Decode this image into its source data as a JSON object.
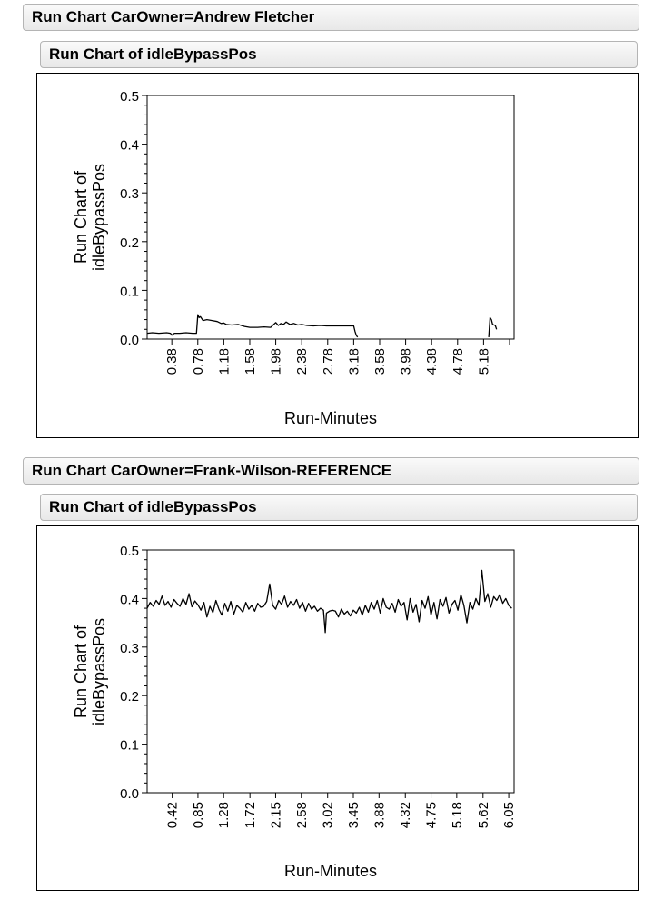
{
  "panels": [
    {
      "group_title": "Run Chart CarOwner=Andrew Fletcher",
      "chart_title": "Run Chart of idleBypassPos"
    },
    {
      "group_title": "Run Chart CarOwner=Frank-Wilson-REFERENCE",
      "chart_title": "Run Chart of idleBypassPos"
    }
  ],
  "chart_data": [
    {
      "type": "line",
      "title": "Run Chart of idleBypassPos",
      "xlabel": "Run-Minutes",
      "ylabel": "Run Chart of idleBypassPos",
      "ylabel_lines": [
        "Run Chart of",
        "idleBypassPos"
      ],
      "ylim": [
        0,
        0.5
      ],
      "yticks": [
        "0.0",
        "0.1",
        "0.2",
        "0.3",
        "0.4",
        "0.5"
      ],
      "xlim": [
        0,
        5.65
      ],
      "xticks": [
        "0.38",
        "0.78",
        "1.18",
        "1.58",
        "1.98",
        "2.38",
        "2.78",
        "3.18",
        "3.58",
        "3.98",
        "4.38",
        "4.78",
        "5.18"
      ],
      "xtick_values": [
        0.38,
        0.78,
        1.18,
        1.58,
        1.98,
        2.38,
        2.78,
        3.18,
        3.58,
        3.98,
        4.38,
        4.78,
        5.18
      ],
      "grid": false,
      "series": [
        {
          "x": [
            0.0,
            0.08,
            0.18,
            0.3,
            0.36,
            0.38,
            0.42,
            0.5,
            0.6,
            0.7,
            0.76,
            0.78,
            0.8,
            0.82,
            0.86,
            0.92,
            1.0,
            1.08,
            1.14,
            1.18,
            1.22,
            1.3,
            1.4,
            1.5,
            1.58,
            1.7,
            1.8,
            1.9,
            1.95,
            1.98,
            2.02,
            2.06,
            2.1,
            2.14,
            2.2,
            2.26,
            2.32,
            2.38,
            2.46,
            2.56,
            2.66,
            2.76,
            2.86,
            2.96,
            3.06,
            3.14,
            3.18,
            3.2,
            3.22,
            3.24,
            5.26,
            5.28,
            5.3,
            5.32,
            5.36,
            5.38
          ],
          "y": [
            0.012,
            0.013,
            0.012,
            0.013,
            0.012,
            0.008,
            0.012,
            0.012,
            0.013,
            0.012,
            0.012,
            0.05,
            0.044,
            0.046,
            0.038,
            0.04,
            0.038,
            0.036,
            0.032,
            0.033,
            0.03,
            0.029,
            0.03,
            0.026,
            0.024,
            0.024,
            0.025,
            0.024,
            0.03,
            0.034,
            0.028,
            0.032,
            0.03,
            0.035,
            0.03,
            0.032,
            0.029,
            0.03,
            0.028,
            0.027,
            0.028,
            0.027,
            0.027,
            0.027,
            0.027,
            0.027,
            0.027,
            0.016,
            0.008,
            0.004,
            0.004,
            0.044,
            0.04,
            0.03,
            0.028,
            0.02
          ]
        }
      ]
    },
    {
      "type": "line",
      "title": "Run Chart of idleBypassPos",
      "xlabel": "Run-Minutes",
      "ylabel": "Run Chart of idleBypassPos",
      "ylabel_lines": [
        "Run Chart of",
        "idleBypassPos"
      ],
      "ylim": [
        0,
        0.5
      ],
      "yticks": [
        "0.0",
        "0.1",
        "0.2",
        "0.3",
        "0.4",
        "0.5"
      ],
      "xlim": [
        0,
        6.14
      ],
      "xticks": [
        "0.42",
        "0.85",
        "1.28",
        "1.72",
        "2.15",
        "2.58",
        "3.02",
        "3.45",
        "3.88",
        "4.32",
        "4.75",
        "5.18",
        "5.62",
        "6.05"
      ],
      "xtick_values": [
        0.42,
        0.85,
        1.28,
        1.72,
        2.15,
        2.58,
        3.02,
        3.45,
        3.88,
        4.32,
        4.75,
        5.18,
        5.62,
        6.05
      ],
      "grid": false,
      "series": [
        {
          "x": [
            0.0,
            0.05,
            0.1,
            0.15,
            0.2,
            0.25,
            0.3,
            0.35,
            0.4,
            0.45,
            0.5,
            0.55,
            0.6,
            0.65,
            0.7,
            0.75,
            0.8,
            0.85,
            0.9,
            0.95,
            1.0,
            1.05,
            1.1,
            1.15,
            1.2,
            1.25,
            1.3,
            1.35,
            1.4,
            1.45,
            1.5,
            1.55,
            1.6,
            1.65,
            1.7,
            1.75,
            1.8,
            1.85,
            1.9,
            1.95,
            2.0,
            2.05,
            2.1,
            2.15,
            2.2,
            2.25,
            2.3,
            2.35,
            2.4,
            2.45,
            2.5,
            2.55,
            2.6,
            2.65,
            2.7,
            2.75,
            2.8,
            2.85,
            2.9,
            2.95,
            2.98,
            3.0,
            3.05,
            3.1,
            3.15,
            3.2,
            3.25,
            3.3,
            3.35,
            3.4,
            3.45,
            3.5,
            3.55,
            3.6,
            3.65,
            3.7,
            3.75,
            3.8,
            3.85,
            3.9,
            3.95,
            4.0,
            4.05,
            4.1,
            4.15,
            4.2,
            4.25,
            4.3,
            4.35,
            4.4,
            4.45,
            4.5,
            4.55,
            4.6,
            4.65,
            4.7,
            4.75,
            4.8,
            4.85,
            4.9,
            4.95,
            5.0,
            5.05,
            5.1,
            5.15,
            5.2,
            5.25,
            5.3,
            5.35,
            5.4,
            5.45,
            5.5,
            5.55,
            5.6,
            5.65,
            5.7,
            5.75,
            5.8,
            5.85,
            5.9,
            5.95,
            6.0,
            6.05,
            6.1
          ],
          "y": [
            0.38,
            0.392,
            0.384,
            0.396,
            0.388,
            0.405,
            0.386,
            0.394,
            0.382,
            0.398,
            0.39,
            0.384,
            0.4,
            0.388,
            0.41,
            0.383,
            0.395,
            0.387,
            0.376,
            0.392,
            0.362,
            0.384,
            0.371,
            0.396,
            0.378,
            0.366,
            0.39,
            0.374,
            0.394,
            0.368,
            0.386,
            0.38,
            0.372,
            0.392,
            0.378,
            0.386,
            0.374,
            0.39,
            0.382,
            0.384,
            0.394,
            0.43,
            0.386,
            0.378,
            0.396,
            0.388,
            0.405,
            0.382,
            0.394,
            0.386,
            0.398,
            0.38,
            0.392,
            0.374,
            0.39,
            0.378,
            0.384,
            0.374,
            0.38,
            0.376,
            0.33,
            0.37,
            0.374,
            0.376,
            0.374,
            0.362,
            0.378,
            0.368,
            0.374,
            0.364,
            0.376,
            0.37,
            0.382,
            0.366,
            0.386,
            0.372,
            0.392,
            0.378,
            0.396,
            0.37,
            0.4,
            0.382,
            0.378,
            0.39,
            0.372,
            0.398,
            0.384,
            0.392,
            0.356,
            0.4,
            0.372,
            0.388,
            0.352,
            0.396,
            0.38,
            0.404,
            0.366,
            0.392,
            0.358,
            0.398,
            0.384,
            0.402,
            0.37,
            0.388,
            0.396,
            0.376,
            0.408,
            0.386,
            0.35,
            0.392,
            0.378,
            0.4,
            0.386,
            0.458,
            0.394,
            0.41,
            0.382,
            0.404,
            0.396,
            0.408,
            0.39,
            0.4,
            0.386,
            0.38
          ]
        }
      ]
    }
  ]
}
